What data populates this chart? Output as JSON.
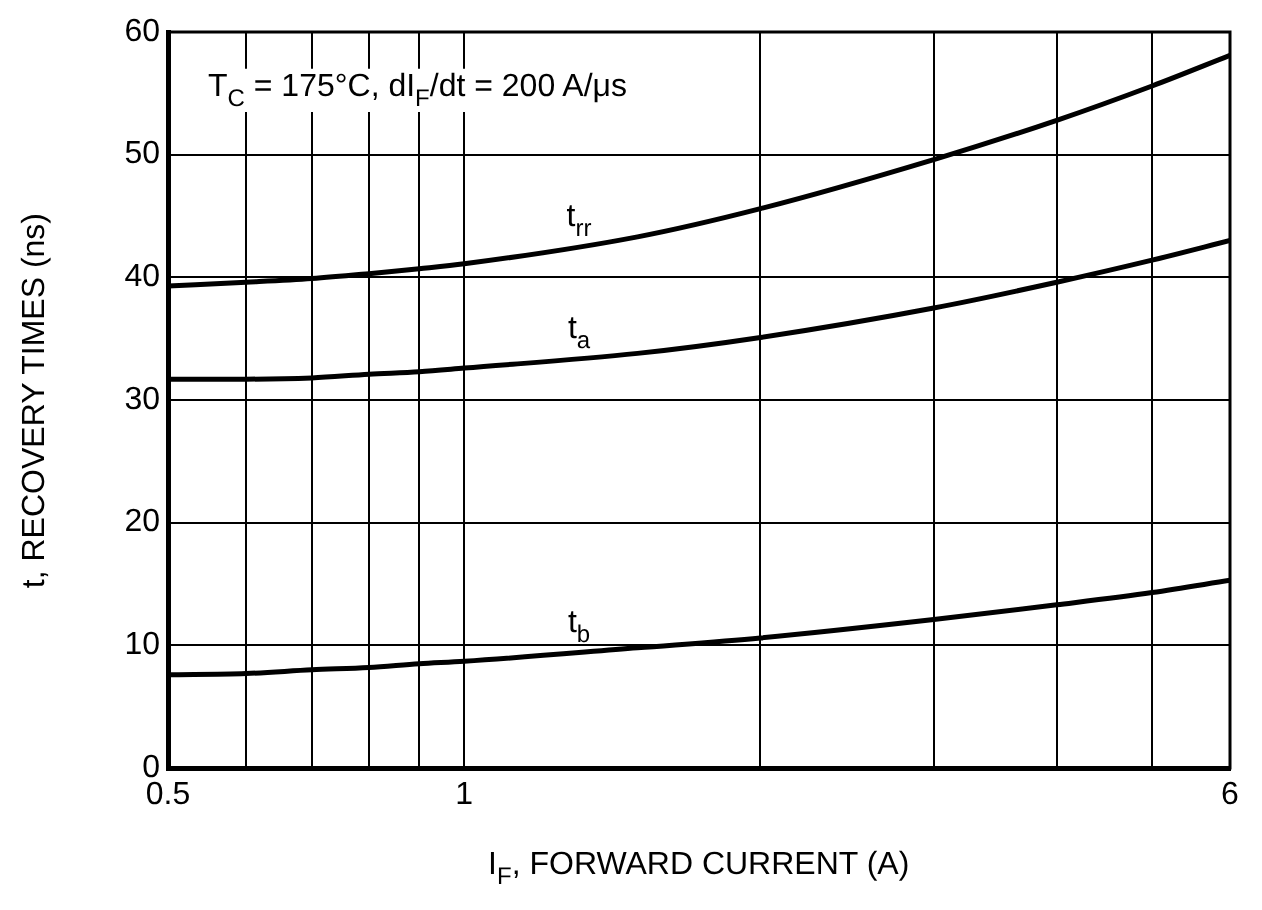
{
  "chart_data": {
    "type": "line",
    "xlabel": "I$_{F}$, FORWARD CURRENT (A)",
    "ylabel": "t, RECOVERY TIMES (ns)",
    "annotations": [
      "T$_{C}$ = 175°C, dI$_{F}$/dt = 200 A/μs"
    ],
    "x": [
      0.5,
      0.6,
      0.7,
      0.8,
      0.9,
      1,
      1.5,
      2,
      3,
      4,
      5,
      6
    ],
    "series": [
      {
        "name": "t$_{rr}$",
        "color": "#000000",
        "values": [
          39.3,
          39.6,
          39.9,
          40.3,
          40.7,
          41.1,
          43.3,
          45.6,
          49.6,
          52.8,
          55.6,
          58.1
        ]
      },
      {
        "name": "t$_{a}$",
        "color": "#000000",
        "values": [
          31.7,
          31.7,
          31.8,
          32.1,
          32.3,
          32.6,
          33.8,
          35.1,
          37.5,
          39.6,
          41.4,
          43.0
        ]
      },
      {
        "name": "t$_{b}$",
        "color": "#000000",
        "values": [
          7.6,
          7.7,
          8.0,
          8.2,
          8.5,
          8.7,
          9.8,
          10.6,
          12.1,
          13.3,
          14.3,
          15.3
        ]
      }
    ],
    "log": "x",
    "xlim": [
      0.5,
      6
    ],
    "xticks": [
      0.5,
      {
        "value": 0.6,
        "label": null
      },
      {
        "value": 0.7,
        "label": null
      },
      {
        "value": 0.8,
        "label": null
      },
      {
        "value": 0.9,
        "label": null
      },
      1,
      {
        "value": 2,
        "label": null
      },
      {
        "value": 3,
        "label": null
      },
      {
        "value": 4,
        "label": null
      },
      {
        "value": 5,
        "label": null
      },
      6
    ],
    "ylim": [
      0,
      60
    ],
    "yticks": [
      0,
      10,
      20,
      30,
      40,
      50,
      60
    ],
    "grid": true,
    "legend": false,
    "marker": "none",
    "line_style": "solid"
  }
}
